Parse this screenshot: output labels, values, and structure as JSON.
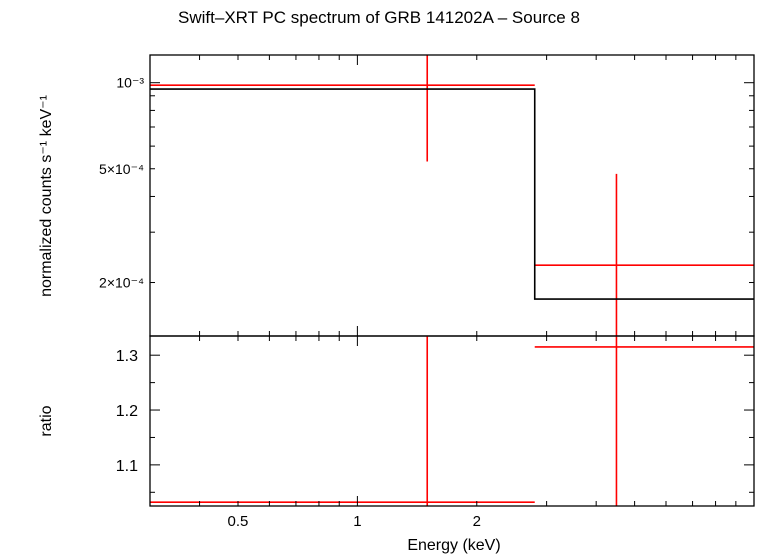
{
  "chart_data": [
    {
      "panel": "spectrum",
      "type": "scatter",
      "title": "Swift–XRT PC spectrum of GRB 141202A – Source 8",
      "ylabel": "normalized counts s⁻¹ keV⁻¹",
      "xlabel": "",
      "xscale": "log",
      "yscale": "log",
      "xlim": [
        0.3,
        10
      ],
      "ylim": [
        0.00013,
        0.00125
      ],
      "y_tick_labels": [
        {
          "value": 0.001,
          "label": "10⁻³"
        },
        {
          "value": 0.0005,
          "label": "5×10⁻⁴"
        },
        {
          "value": 0.0002,
          "label": "2×10⁻⁴"
        }
      ],
      "series": [
        {
          "kind": "data",
          "color": "#ff0000",
          "points": [
            {
              "x": 1.5,
              "xlo": 0.3,
              "xhi": 2.8,
              "y": 0.00098,
              "ylo": 0.00053,
              "yhi": 0.00125
            },
            {
              "x": 4.5,
              "xlo": 2.8,
              "xhi": 10,
              "y": 0.00023,
              "ylo": 0.00013,
              "yhi": 0.00048
            }
          ]
        },
        {
          "kind": "model",
          "color": "#000000",
          "steps": [
            {
              "xlo": 0.3,
              "xhi": 2.8,
              "y": 0.00095
            },
            {
              "xlo": 2.8,
              "xhi": 10,
              "y": 0.000175
            }
          ]
        }
      ]
    },
    {
      "panel": "ratio",
      "type": "scatter",
      "ylabel": "ratio",
      "xlabel": "Energy (keV)",
      "xscale": "log",
      "xlim": [
        0.3,
        10
      ],
      "ylim": [
        1.025,
        1.335
      ],
      "x_tick_labels": [
        {
          "value": 0.5,
          "label": "0.5"
        },
        {
          "value": 1,
          "label": "1"
        },
        {
          "value": 2,
          "label": "2"
        }
      ],
      "y_tick_labels": [
        {
          "value": 1.1,
          "label": "1.1"
        },
        {
          "value": 1.2,
          "label": "1.2"
        },
        {
          "value": 1.3,
          "label": "1.3"
        }
      ],
      "series": [
        {
          "kind": "data",
          "color": "#ff0000",
          "points": [
            {
              "x": 1.5,
              "xlo": 0.3,
              "xhi": 2.8,
              "y": 1.032,
              "ylo": 1.025,
              "yhi": 1.335
            },
            {
              "x": 4.5,
              "xlo": 2.8,
              "xhi": 10,
              "y": 1.315,
              "ylo": 1.025,
              "yhi": 1.335
            }
          ]
        }
      ]
    }
  ]
}
